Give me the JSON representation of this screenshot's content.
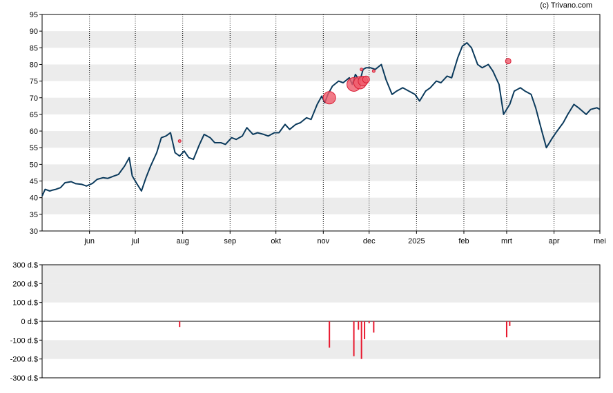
{
  "copyright": "(c) Trivano.com",
  "chart_data": [
    {
      "type": "line",
      "title": "",
      "xlabel": "",
      "ylabel": "",
      "ylim": [
        30,
        95
      ],
      "yticks": [
        30,
        35,
        40,
        45,
        50,
        55,
        60,
        65,
        70,
        75,
        80,
        85,
        90,
        95
      ],
      "xlim": [
        "2024-05-01",
        "2025-05-01"
      ],
      "x_ticks": [
        {
          "date": "2024-06-01",
          "label": "jun"
        },
        {
          "date": "2024-07-01",
          "label": "jul"
        },
        {
          "date": "2024-08-01",
          "label": "aug"
        },
        {
          "date": "2024-09-01",
          "label": "sep"
        },
        {
          "date": "2024-10-01",
          "label": "okt"
        },
        {
          "date": "2024-11-01",
          "label": "nov"
        },
        {
          "date": "2024-12-01",
          "label": "dec"
        },
        {
          "date": "2025-01-01",
          "label": "2025"
        },
        {
          "date": "2025-02-01",
          "label": "feb"
        },
        {
          "date": "2025-03-01",
          "label": "mrt"
        },
        {
          "date": "2025-04-01",
          "label": "apr"
        },
        {
          "date": "2025-05-01",
          "label": "mei"
        }
      ],
      "grid": "alternating horizontal bands, dotted vertical month lines",
      "line_color": "#0b3a5c",
      "series": [
        {
          "x": [
            "2024-05-01",
            "2024-05-03",
            "2024-05-06",
            "2024-05-08",
            "2024-05-10",
            "2024-05-13",
            "2024-05-16",
            "2024-05-20",
            "2024-05-23",
            "2024-05-27",
            "2024-05-30",
            "2024-06-03",
            "2024-06-06",
            "2024-06-10",
            "2024-06-13",
            "2024-06-17",
            "2024-06-20",
            "2024-06-24",
            "2024-06-27",
            "2024-06-29",
            "2024-07-02",
            "2024-07-05",
            "2024-07-08",
            "2024-07-11",
            "2024-07-15",
            "2024-07-18",
            "2024-07-21",
            "2024-07-24",
            "2024-07-27",
            "2024-07-30",
            "2024-08-02",
            "2024-08-05",
            "2024-08-08",
            "2024-08-12",
            "2024-08-15",
            "2024-08-19",
            "2024-08-22",
            "2024-08-26",
            "2024-08-29",
            "2024-09-02",
            "2024-09-05",
            "2024-09-09",
            "2024-09-12",
            "2024-09-16",
            "2024-09-19",
            "2024-09-23",
            "2024-09-26",
            "2024-09-30",
            "2024-10-03",
            "2024-10-07",
            "2024-10-10",
            "2024-10-14",
            "2024-10-17",
            "2024-10-21",
            "2024-10-24",
            "2024-10-28",
            "2024-10-31",
            "2024-11-02",
            "2024-11-04",
            "2024-11-07",
            "2024-11-11",
            "2024-11-14",
            "2024-11-18",
            "2024-11-20",
            "2024-11-22",
            "2024-11-25",
            "2024-11-27",
            "2024-11-29",
            "2024-12-02",
            "2024-12-05",
            "2024-12-09",
            "2024-12-12",
            "2024-12-16",
            "2024-12-19",
            "2024-12-23",
            "2024-12-27",
            "2024-12-31",
            "2025-01-03",
            "2025-01-07",
            "2025-01-10",
            "2025-01-14",
            "2025-01-17",
            "2025-01-21",
            "2025-01-24",
            "2025-01-28",
            "2025-01-31",
            "2025-02-03",
            "2025-02-06",
            "2025-02-10",
            "2025-02-13",
            "2025-02-17",
            "2025-02-20",
            "2025-02-24",
            "2025-02-27",
            "2025-03-03",
            "2025-03-06",
            "2025-03-10",
            "2025-03-13",
            "2025-03-17",
            "2025-03-20",
            "2025-03-24",
            "2025-03-27",
            "2025-03-31",
            "2025-04-03",
            "2025-04-07",
            "2025-04-10",
            "2025-04-14",
            "2025-04-17",
            "2025-04-22",
            "2025-04-25",
            "2025-04-29",
            "2025-05-01"
          ],
          "y": [
            40.5,
            42.5,
            42.0,
            42.3,
            42.5,
            43.0,
            44.5,
            44.8,
            44.2,
            44.0,
            43.5,
            44.3,
            45.5,
            46.0,
            45.8,
            46.5,
            47.0,
            49.5,
            52.0,
            46.5,
            44.2,
            42.0,
            46.0,
            49.5,
            53.5,
            58.0,
            58.5,
            59.5,
            53.5,
            52.5,
            54.0,
            52.0,
            51.5,
            56.0,
            59.0,
            58.0,
            56.5,
            56.5,
            56.0,
            58.0,
            57.5,
            58.5,
            61.0,
            59.0,
            59.5,
            59.0,
            58.5,
            59.5,
            59.5,
            62.0,
            60.5,
            62.0,
            62.5,
            64.0,
            63.5,
            68.0,
            70.5,
            68.5,
            71.0,
            73.5,
            75.0,
            74.5,
            76.0,
            74.0,
            77.0,
            75.0,
            78.5,
            79.0,
            79.0,
            78.5,
            80.0,
            75.5,
            71.0,
            72.0,
            73.0,
            72.0,
            71.0,
            69.0,
            72.0,
            73.0,
            75.0,
            74.5,
            76.5,
            76.0,
            82.0,
            85.5,
            86.5,
            85.0,
            80.0,
            79.0,
            80.0,
            78.0,
            74.0,
            65.0,
            68.0,
            72.0,
            73.0,
            72.0,
            71.0,
            67.0,
            60.0,
            55.0,
            58.0,
            60.0,
            62.5,
            65.0,
            68.0,
            67.0,
            65.0,
            66.5,
            67.0,
            66.5
          ]
        }
      ],
      "markers": [
        {
          "x": "2024-07-30",
          "y": 57.0,
          "size": 2
        },
        {
          "x": "2024-11-05",
          "y": 70.0,
          "size": 9
        },
        {
          "x": "2024-11-21",
          "y": 74.0,
          "size": 10
        },
        {
          "x": "2024-11-25",
          "y": 74.5,
          "size": 9
        },
        {
          "x": "2024-11-27",
          "y": 75.0,
          "size": 7
        },
        {
          "x": "2024-11-29",
          "y": 75.5,
          "size": 5
        },
        {
          "x": "2024-11-26",
          "y": 78.5,
          "size": 2
        },
        {
          "x": "2024-12-04",
          "y": 78.0,
          "size": 2
        },
        {
          "x": "2025-03-02",
          "y": 81.0,
          "size": 4
        }
      ]
    },
    {
      "type": "bar",
      "title": "",
      "xlabel": "",
      "ylabel": "",
      "ylim": [
        -300,
        300
      ],
      "yticks": [
        {
          "value": 300,
          "label": "300 d.$"
        },
        {
          "value": 200,
          "label": "200 d.$"
        },
        {
          "value": 100,
          "label": "100 d.$"
        },
        {
          "value": 0,
          "label": "0 d.$"
        },
        {
          "value": -100,
          "label": "-100 d.$"
        },
        {
          "value": -200,
          "label": "-200 d.$"
        },
        {
          "value": -300,
          "label": "-300 d.$"
        }
      ],
      "bar_color": "#e8182e",
      "series": [
        {
          "x": [
            "2024-07-30",
            "2024-11-05",
            "2024-11-21",
            "2024-11-24",
            "2024-11-26",
            "2024-11-28",
            "2024-12-01",
            "2024-12-04",
            "2025-03-01",
            "2025-03-03"
          ],
          "values": [
            -30,
            -140,
            -185,
            -45,
            -200,
            -95,
            -10,
            -60,
            -85,
            -25
          ]
        }
      ]
    }
  ]
}
